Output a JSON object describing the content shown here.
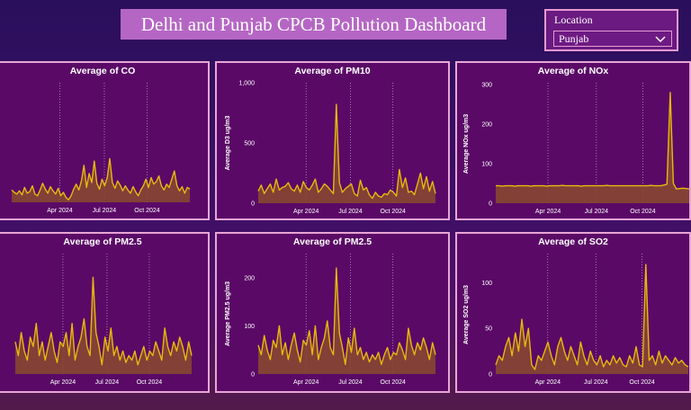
{
  "dashboard": {
    "title": "Delhi and Punjab CPCB Pollution Dashboard"
  },
  "location_filter": {
    "label": "Location",
    "selected": "Punjab",
    "icon": "chevron-down-icon"
  },
  "colors": {
    "line": "#e8b80f",
    "fill": "#8a4a2e",
    "panel_bg": "#5a0a66",
    "border": "#e9a5d5"
  },
  "chart_data": [
    {
      "id": "co",
      "type": "area",
      "title": "Average of CO",
      "ylabel": "",
      "yticks": [],
      "ylim": [
        0,
        6
      ],
      "xticks": [
        "Apr 2024",
        "Jul 2024",
        "Oct 2024"
      ],
      "values": [
        1.5,
        1.2,
        1.0,
        1.4,
        0.9,
        1.8,
        1.1,
        1.3,
        2.0,
        1.0,
        0.8,
        1.5,
        2.3,
        1.6,
        1.1,
        1.9,
        1.4,
        1.0,
        1.7,
        0.8,
        1.2,
        0.6,
        0.3,
        0.8,
        1.6,
        2.2,
        1.5,
        2.6,
        4.5,
        1.8,
        3.5,
        2.4,
        5.0,
        2.3,
        1.6,
        2.8,
        2.0,
        3.0,
        5.3,
        2.4,
        1.7,
        2.6,
        2.1,
        1.4,
        2.0,
        1.5,
        1.1,
        1.9,
        1.3,
        0.8,
        1.5,
        2.0,
        2.8,
        1.8,
        3.0,
        2.2,
        2.5,
        3.2,
        2.0,
        1.5,
        2.2,
        1.8,
        2.8,
        3.8,
        2.0,
        1.4,
        1.9,
        1.1,
        1.8,
        1.6
      ]
    },
    {
      "id": "pm10",
      "type": "area",
      "title": "Average of PM10",
      "ylabel": "Average D3 ug/m3",
      "yticks": [
        "0",
        "500",
        "1,000"
      ],
      "ylim": [
        0,
        1000
      ],
      "xticks": [
        "Apr 2024",
        "Jul 2024",
        "Oct 2024"
      ],
      "values": [
        100,
        150,
        80,
        120,
        160,
        90,
        200,
        110,
        130,
        140,
        170,
        120,
        100,
        150,
        90,
        180,
        130,
        110,
        150,
        200,
        90,
        120,
        160,
        140,
        110,
        80,
        820,
        170,
        90,
        120,
        140,
        160,
        80,
        60,
        190,
        110,
        130,
        70,
        40,
        90,
        60,
        50,
        80,
        70,
        110,
        90,
        60,
        280,
        130,
        210,
        90,
        100,
        70,
        160,
        250,
        120,
        220,
        100,
        180,
        80
      ]
    },
    {
      "id": "nox",
      "type": "area",
      "title": "Average of NOx",
      "ylabel": "Average NOx ug/m3",
      "yticks": [
        "0",
        "100",
        "200",
        "300"
      ],
      "ylim": [
        0,
        300
      ],
      "xticks": [
        "Apr 2024",
        "Jul 2024",
        "Oct 2024"
      ],
      "values": [
        44,
        44,
        43,
        44,
        44,
        44,
        43,
        44,
        44,
        44,
        44,
        43,
        44,
        44,
        44,
        44,
        43,
        44,
        44,
        44,
        44,
        45,
        44,
        44,
        44,
        44,
        44,
        43,
        44,
        44,
        44,
        44,
        44,
        44,
        44,
        45,
        44,
        44,
        44,
        44,
        44,
        44,
        44,
        44,
        44,
        44,
        44,
        44,
        44,
        45,
        44,
        44,
        44,
        46,
        48,
        280,
        50,
        36,
        37,
        38,
        37,
        36
      ]
    },
    {
      "id": "pm25a",
      "type": "area",
      "title": "Average of PM2.5",
      "ylabel": "",
      "yticks": [],
      "ylim": [
        0,
        250
      ],
      "xticks": [
        "Apr 2024",
        "Jul 2024",
        "Oct 2024"
      ],
      "values": [
        70,
        40,
        90,
        50,
        30,
        80,
        60,
        110,
        40,
        70,
        30,
        60,
        90,
        50,
        25,
        70,
        60,
        90,
        40,
        110,
        30,
        60,
        80,
        120,
        60,
        40,
        210,
        90,
        60,
        20,
        80,
        50,
        100,
        40,
        60,
        30,
        50,
        25,
        40,
        30,
        50,
        20,
        40,
        60,
        30,
        50,
        40,
        70,
        50,
        30,
        100,
        60,
        40,
        70,
        50,
        80,
        60,
        30,
        70,
        40
      ]
    },
    {
      "id": "pm25b",
      "type": "area",
      "title": "Average of PM2.5",
      "ylabel": "Average PM2.5 ug/m3",
      "yticks": [
        "0",
        "100",
        "200"
      ],
      "ylim": [
        0,
        250
      ],
      "xticks": [
        "Apr 2024",
        "Jul 2024",
        "Oct 2024"
      ],
      "values": [
        60,
        40,
        80,
        50,
        30,
        70,
        55,
        100,
        40,
        65,
        30,
        60,
        85,
        50,
        25,
        70,
        60,
        90,
        40,
        100,
        30,
        55,
        75,
        110,
        55,
        40,
        220,
        85,
        55,
        20,
        75,
        45,
        95,
        40,
        55,
        30,
        45,
        25,
        40,
        30,
        45,
        20,
        40,
        55,
        30,
        45,
        40,
        65,
        50,
        30,
        95,
        60,
        40,
        65,
        50,
        75,
        55,
        30,
        65,
        40
      ]
    },
    {
      "id": "so2",
      "type": "area",
      "title": "Average of SO2",
      "ylabel": "Average SO2 ug/m3",
      "yticks": [
        "0",
        "50",
        "100"
      ],
      "ylim": [
        0,
        130
      ],
      "xticks": [
        "Apr 2024",
        "Jul 2024",
        "Oct 2024"
      ],
      "values": [
        10,
        20,
        15,
        30,
        40,
        20,
        45,
        25,
        60,
        30,
        50,
        10,
        5,
        20,
        15,
        25,
        35,
        20,
        10,
        30,
        40,
        25,
        15,
        30,
        20,
        10,
        35,
        20,
        10,
        25,
        15,
        10,
        20,
        8,
        15,
        10,
        20,
        12,
        18,
        10,
        8,
        20,
        12,
        30,
        10,
        8,
        120,
        15,
        20,
        10,
        25,
        12,
        20,
        15,
        10,
        18,
        12,
        15,
        10,
        8
      ]
    }
  ]
}
